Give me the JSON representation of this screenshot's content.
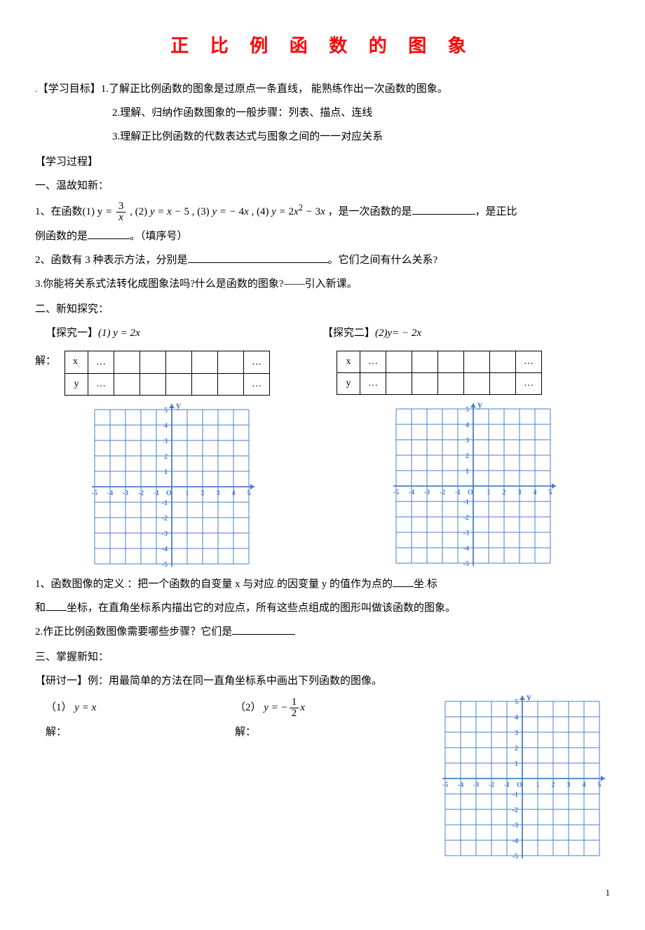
{
  "title": "正 比 例 函 数 的 图 象",
  "objectives_label": "【学习目标】",
  "objectives": [
    "1.了解正比例函数的图象是过原点一条直线，  能熟练作出一次函数的图象。",
    "2.理解、归纳作函数图象的一般步骤：列表、描点、连线",
    "3.理解正比例函数的代数表达式与图象之间的一一对应关系"
  ],
  "process_label": "【学习过程】",
  "warmup_label": "一、温故知新：",
  "q1_prefix": "1、在函数(1) ",
  "q1_f1": "y = 3/x",
  "q1_mid1": ", (2) ",
  "q1_f2": "y = x − 5",
  "q1_mid2": ", (3) ",
  "q1_f3": "y = − 4x",
  "q1_mid3": ", (4) ",
  "q1_f4": "y = 2x² − 3x",
  "q1_suffix1": "，是一次函数的是",
  "q1_suffix2": "，是正比",
  "q1_line2a": "例函数的是",
  "q1_line2b": "。（填序号）",
  "q2_a": "2、函数有 3 种表示方法，分别是",
  "q2_b": "。它们之间有什么关系?",
  "q3": "3.你能将关系式法转化成图象法吗?什么是函数的图象?——引入新课。",
  "explore_label": "二、新知探究：",
  "explore1_label": "【探究一】",
  "explore1_eq": "(1) y = 2x",
  "explore2_label": "【探究二】",
  "explore2_eq": "(2)y= − 2x",
  "solution_label": "解：",
  "table_headers": {
    "x": "x",
    "y": "y",
    "dots": "…"
  },
  "grid": {
    "size": 220,
    "cells": 10,
    "range": [
      -5,
      5
    ],
    "grid_color": "#4a7ec8",
    "axis_color": "#4a7ec8",
    "label_color": "#4a7ec8",
    "x_ticks": [
      -5,
      -4,
      -3,
      -2,
      -1,
      1,
      2,
      3,
      4,
      5
    ],
    "y_ticks": [
      -5,
      -4,
      -3,
      -2,
      -1,
      1,
      2,
      3,
      4,
      5
    ],
    "x_label": "x",
    "y_label": "y",
    "origin_label": "O"
  },
  "def1_a": "1、函数图像的定义",
  "def1_b": "：把一个函数的自变量 x 与对应",
  "def1_c": "的因变量 y 的值作为点的",
  "def1_d": "坐",
  "def1_e": "标",
  "def2_a": "和",
  "def2_b": "坐标，在直角坐标系内描出它的对应点，所有这些点组成的图形叫做该函数的图象。",
  "steps_a": "2.作正比例函数图像需要哪些步骤？它们是",
  "grasp_label": "三、掌握新知：",
  "discuss_label": "【研讨一】例：用最简单的方法在同一直角坐标系中画出下列函数的图像。",
  "ex1_label": "（1）",
  "ex1_eq": "y = x",
  "ex2_label": "（2）",
  "ex2_eq_pre": "y = −",
  "ex2_frac_num": "1",
  "ex2_frac_den": "2",
  "ex2_eq_post": "x",
  "page_num": "1"
}
